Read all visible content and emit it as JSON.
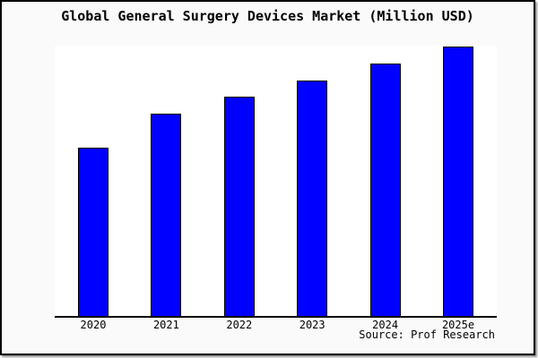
{
  "page": {
    "background_color": "#fafafa",
    "frame_border_color": "#000000",
    "plot_background_color": "#ffffff"
  },
  "chart": {
    "title": "Global General Surgery Devices Market (Million USD)",
    "source": "Source: Prof Research",
    "bar_color": "#0000ff",
    "bar_border_color": "#000000",
    "axis_color": "#000000"
  },
  "chart_data": {
    "type": "bar",
    "title": "Global General Surgery Devices Market (Million USD)",
    "categories": [
      "2020",
      "2021",
      "2022",
      "2023",
      "2024",
      "2025e"
    ],
    "values": [
      100,
      120,
      130,
      140,
      150,
      160
    ],
    "xlabel": "",
    "ylabel": "",
    "ylim": [
      0,
      160.5
    ],
    "grid": false,
    "legend": false,
    "y_axis_shown": false,
    "annotation": "Source: Prof Research"
  }
}
